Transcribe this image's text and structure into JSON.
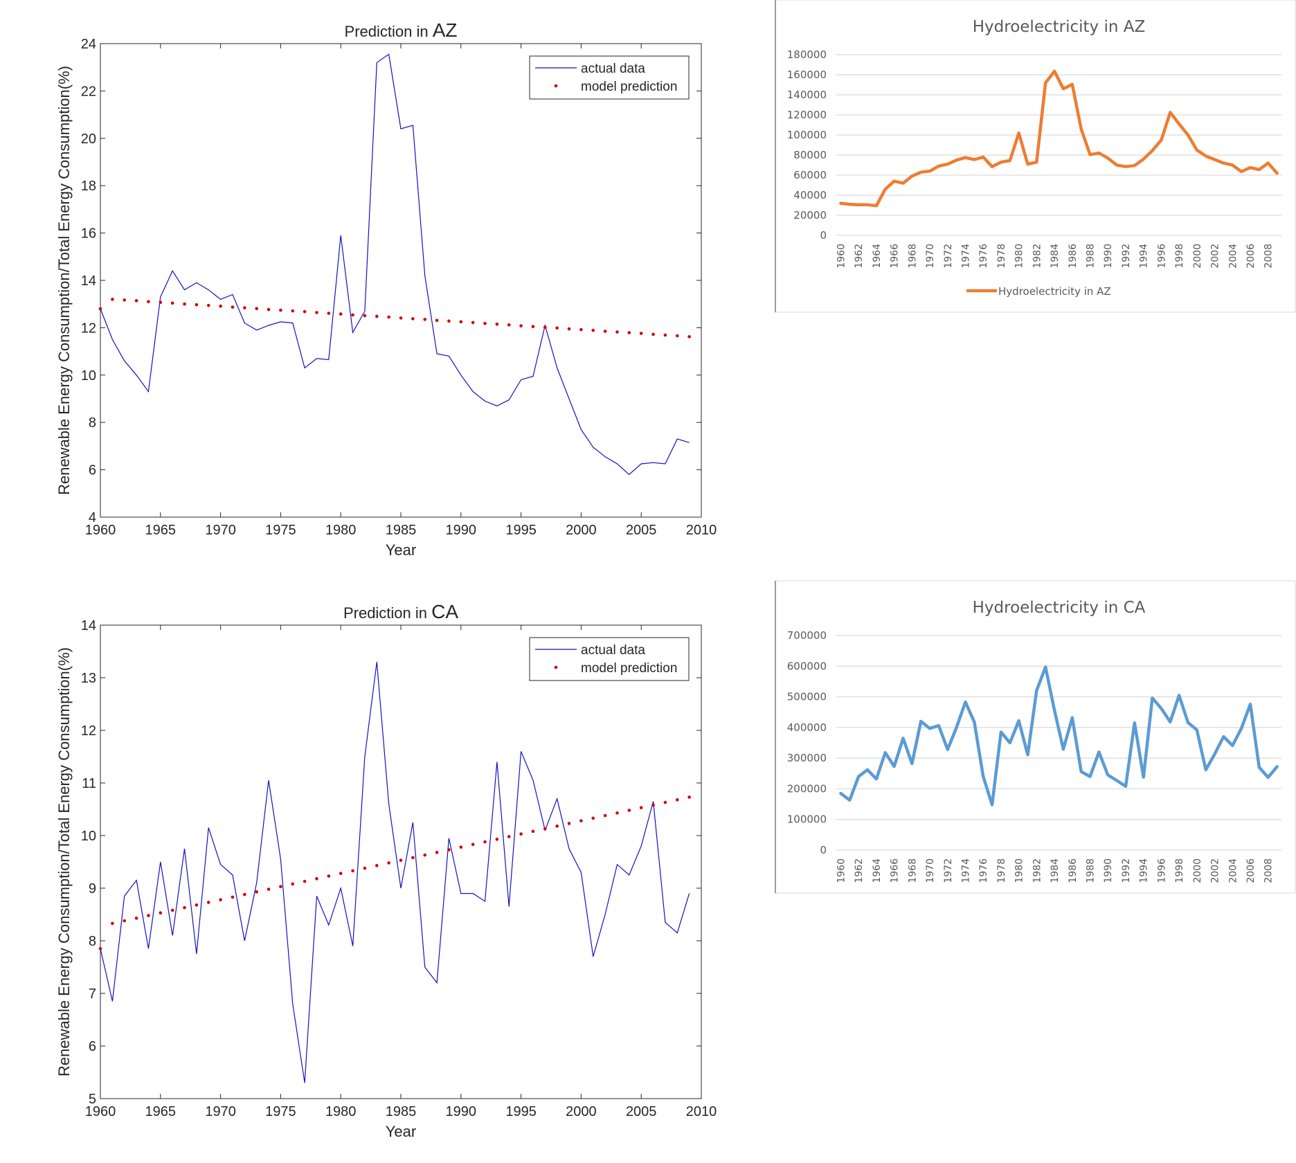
{
  "chart_data": [
    {
      "id": "az_prediction",
      "type": "line",
      "title_prefix": "Prediction in ",
      "title_state": "AZ",
      "xlabel": "Year",
      "ylabel": "Renewable Energy Consumption/Total Energy Consumption(%)",
      "xlim": [
        1960,
        2010
      ],
      "ylim": [
        4,
        24
      ],
      "xticks": [
        1960,
        1965,
        1970,
        1975,
        1980,
        1985,
        1990,
        1995,
        2000,
        2005,
        2010
      ],
      "yticks": [
        4,
        6,
        8,
        10,
        12,
        14,
        16,
        18,
        20,
        22,
        24
      ],
      "legend": {
        "position": "top-right",
        "entries": [
          "actual data",
          "model prediction"
        ]
      },
      "colors": {
        "actual": "#1010c8",
        "prediction": "#d40000"
      },
      "x": [
        1960,
        1961,
        1962,
        1963,
        1964,
        1965,
        1966,
        1967,
        1968,
        1969,
        1970,
        1971,
        1972,
        1973,
        1974,
        1975,
        1976,
        1977,
        1978,
        1979,
        1980,
        1981,
        1982,
        1983,
        1984,
        1985,
        1986,
        1987,
        1988,
        1989,
        1990,
        1991,
        1992,
        1993,
        1994,
        1995,
        1996,
        1997,
        1998,
        1999,
        2000,
        2001,
        2002,
        2003,
        2004,
        2005,
        2006,
        2007,
        2008,
        2009
      ],
      "series": [
        {
          "name": "actual data",
          "values": [
            12.8,
            11.5,
            10.6,
            10.0,
            9.3,
            13.3,
            14.4,
            13.6,
            13.9,
            13.6,
            13.2,
            13.4,
            12.2,
            11.9,
            12.1,
            12.25,
            12.2,
            10.3,
            10.7,
            10.65,
            15.9,
            11.8,
            12.7,
            23.2,
            23.55,
            20.4,
            20.55,
            14.2,
            10.9,
            10.8,
            10.0,
            9.3,
            8.9,
            8.7,
            8.95,
            9.8,
            9.95,
            12.1,
            10.3,
            9.0,
            7.7,
            6.95,
            6.55,
            6.25,
            5.8,
            6.25,
            6.3,
            6.25,
            7.3,
            7.15
          ]
        },
        {
          "name": "model prediction",
          "values": [
            12.8,
            13.2,
            13.17,
            13.14,
            13.1,
            13.07,
            13.04,
            13.0,
            12.97,
            12.94,
            12.91,
            12.87,
            12.84,
            12.81,
            12.77,
            12.74,
            12.71,
            12.68,
            12.64,
            12.61,
            12.58,
            12.54,
            12.51,
            12.48,
            12.45,
            12.41,
            12.38,
            12.35,
            12.31,
            12.28,
            12.25,
            12.22,
            12.18,
            12.15,
            12.12,
            12.08,
            12.05,
            12.02,
            11.99,
            11.95,
            11.92,
            11.89,
            11.85,
            11.82,
            11.79,
            11.76,
            11.72,
            11.69,
            11.66,
            11.62
          ]
        }
      ]
    },
    {
      "id": "ca_prediction",
      "type": "line",
      "title_prefix": "Prediction in ",
      "title_state": "CA",
      "xlabel": "Year",
      "ylabel": "Renewable Energy Consumption/Total Energy Consumption(%)",
      "xlim": [
        1960,
        2010
      ],
      "ylim": [
        5,
        14
      ],
      "xticks": [
        1960,
        1965,
        1970,
        1975,
        1980,
        1985,
        1990,
        1995,
        2000,
        2005,
        2010
      ],
      "yticks": [
        5,
        6,
        7,
        8,
        9,
        10,
        11,
        12,
        13,
        14
      ],
      "legend": {
        "position": "top-right",
        "entries": [
          "actual data",
          "model prediction"
        ]
      },
      "colors": {
        "actual": "#1010c8",
        "prediction": "#d40000"
      },
      "x": [
        1960,
        1961,
        1962,
        1963,
        1964,
        1965,
        1966,
        1967,
        1968,
        1969,
        1970,
        1971,
        1972,
        1973,
        1974,
        1975,
        1976,
        1977,
        1978,
        1979,
        1980,
        1981,
        1982,
        1983,
        1984,
        1985,
        1986,
        1987,
        1988,
        1989,
        1990,
        1991,
        1992,
        1993,
        1994,
        1995,
        1996,
        1997,
        1998,
        1999,
        2000,
        2001,
        2002,
        2003,
        2004,
        2005,
        2006,
        2007,
        2008,
        2009
      ],
      "series": [
        {
          "name": "actual data",
          "values": [
            7.85,
            6.85,
            8.85,
            9.15,
            7.85,
            9.5,
            8.1,
            9.75,
            7.75,
            10.15,
            9.45,
            9.25,
            8.0,
            9.1,
            11.05,
            9.55,
            6.8,
            5.3,
            8.85,
            8.3,
            9.0,
            7.9,
            11.5,
            13.3,
            10.6,
            9.0,
            10.25,
            7.5,
            7.2,
            9.95,
            8.9,
            8.9,
            8.75,
            11.4,
            8.65,
            11.6,
            11.05,
            10.1,
            10.7,
            9.75,
            9.3,
            7.7,
            8.5,
            9.45,
            9.25,
            9.8,
            10.65,
            8.35,
            8.15,
            8.9
          ]
        },
        {
          "name": "model prediction",
          "values": [
            7.85,
            8.33,
            8.38,
            8.43,
            8.48,
            8.53,
            8.58,
            8.63,
            8.68,
            8.73,
            8.78,
            8.83,
            8.88,
            8.93,
            8.98,
            9.03,
            9.08,
            9.13,
            9.18,
            9.23,
            9.28,
            9.33,
            9.38,
            9.43,
            9.48,
            9.53,
            9.58,
            9.63,
            9.68,
            9.73,
            9.78,
            9.83,
            9.88,
            9.93,
            9.98,
            10.03,
            10.08,
            10.13,
            10.18,
            10.23,
            10.28,
            10.33,
            10.38,
            10.43,
            10.48,
            10.53,
            10.58,
            10.63,
            10.68,
            10.73
          ]
        }
      ]
    },
    {
      "id": "az_hydro",
      "type": "line",
      "title": "Hydroelectricity in AZ",
      "xlabel": "",
      "ylabel": "",
      "ylim": [
        0,
        180000
      ],
      "yticks": [
        0,
        20000,
        40000,
        60000,
        80000,
        100000,
        120000,
        140000,
        160000,
        180000
      ],
      "xtick_labels": [
        "1960",
        "1962",
        "1964",
        "1966",
        "1968",
        "1970",
        "1972",
        "1974",
        "1976",
        "1978",
        "1980",
        "1982",
        "1984",
        "1986",
        "1988",
        "1990",
        "1992",
        "1994",
        "1996",
        "1998",
        "2000",
        "2002",
        "2004",
        "2006",
        "2008"
      ],
      "legend": {
        "position": "bottom",
        "entries": [
          "Hydroelectricity in AZ"
        ]
      },
      "colors": {
        "line": "#ed7d31"
      },
      "x": [
        1960,
        1961,
        1962,
        1963,
        1964,
        1965,
        1966,
        1967,
        1968,
        1969,
        1970,
        1971,
        1972,
        1973,
        1974,
        1975,
        1976,
        1977,
        1978,
        1979,
        1980,
        1981,
        1982,
        1983,
        1984,
        1985,
        1986,
        1987,
        1988,
        1989,
        1990,
        1991,
        1992,
        1993,
        1994,
        1995,
        1996,
        1997,
        1998,
        1999,
        2000,
        2001,
        2002,
        2003,
        2004,
        2005,
        2006,
        2007,
        2008,
        2009
      ],
      "series": [
        {
          "name": "Hydroelectricity in AZ",
          "values": [
            32000,
            31000,
            30500,
            30500,
            29500,
            46000,
            54000,
            52000,
            59000,
            63000,
            64000,
            69000,
            71000,
            75000,
            77500,
            75500,
            78000,
            68500,
            73000,
            74500,
            102000,
            71000,
            73000,
            152000,
            163500,
            146000,
            150500,
            106000,
            80500,
            82000,
            77000,
            70000,
            68500,
            69500,
            76000,
            84500,
            95000,
            122500,
            111000,
            100000,
            85000,
            79000,
            75500,
            72000,
            70000,
            63500,
            67500,
            65500,
            72000,
            62000
          ]
        }
      ]
    },
    {
      "id": "ca_hydro",
      "type": "line",
      "title": "Hydroelectricity in CA",
      "xlabel": "",
      "ylabel": "",
      "ylim": [
        0,
        700000
      ],
      "yticks": [
        0,
        100000,
        200000,
        300000,
        400000,
        500000,
        600000,
        700000
      ],
      "xtick_labels": [
        "1960",
        "1962",
        "1964",
        "1966",
        "1968",
        "1970",
        "1972",
        "1974",
        "1976",
        "1978",
        "1980",
        "1982",
        "1984",
        "1986",
        "1988",
        "1990",
        "1992",
        "1994",
        "1996",
        "1998",
        "2000",
        "2002",
        "2004",
        "2006",
        "2008"
      ],
      "legend": {
        "position": "none",
        "entries": []
      },
      "colors": {
        "line": "#5b9bd5"
      },
      "x": [
        1960,
        1961,
        1962,
        1963,
        1964,
        1965,
        1966,
        1967,
        1968,
        1969,
        1970,
        1971,
        1972,
        1973,
        1974,
        1975,
        1976,
        1977,
        1978,
        1979,
        1980,
        1981,
        1982,
        1983,
        1984,
        1985,
        1986,
        1987,
        1988,
        1989,
        1990,
        1991,
        1992,
        1993,
        1994,
        1995,
        1996,
        1997,
        1998,
        1999,
        2000,
        2001,
        2002,
        2003,
        2004,
        2005,
        2006,
        2007,
        2008,
        2009
      ],
      "series": [
        {
          "name": "Hydroelectricity in CA",
          "values": [
            185000,
            163000,
            240000,
            262000,
            232000,
            318000,
            273000,
            365000,
            282000,
            420000,
            397000,
            406000,
            328000,
            400000,
            483000,
            418000,
            240000,
            148000,
            385000,
            350000,
            422000,
            311000,
            520000,
            597000,
            456000,
            329000,
            432000,
            256000,
            240000,
            320000,
            245000,
            227000,
            208000,
            415000,
            238000,
            496000,
            462000,
            418000,
            505000,
            416000,
            392000,
            262000,
            313000,
            370000,
            341000,
            397000,
            476000,
            270000,
            237000,
            272000
          ]
        }
      ]
    }
  ]
}
